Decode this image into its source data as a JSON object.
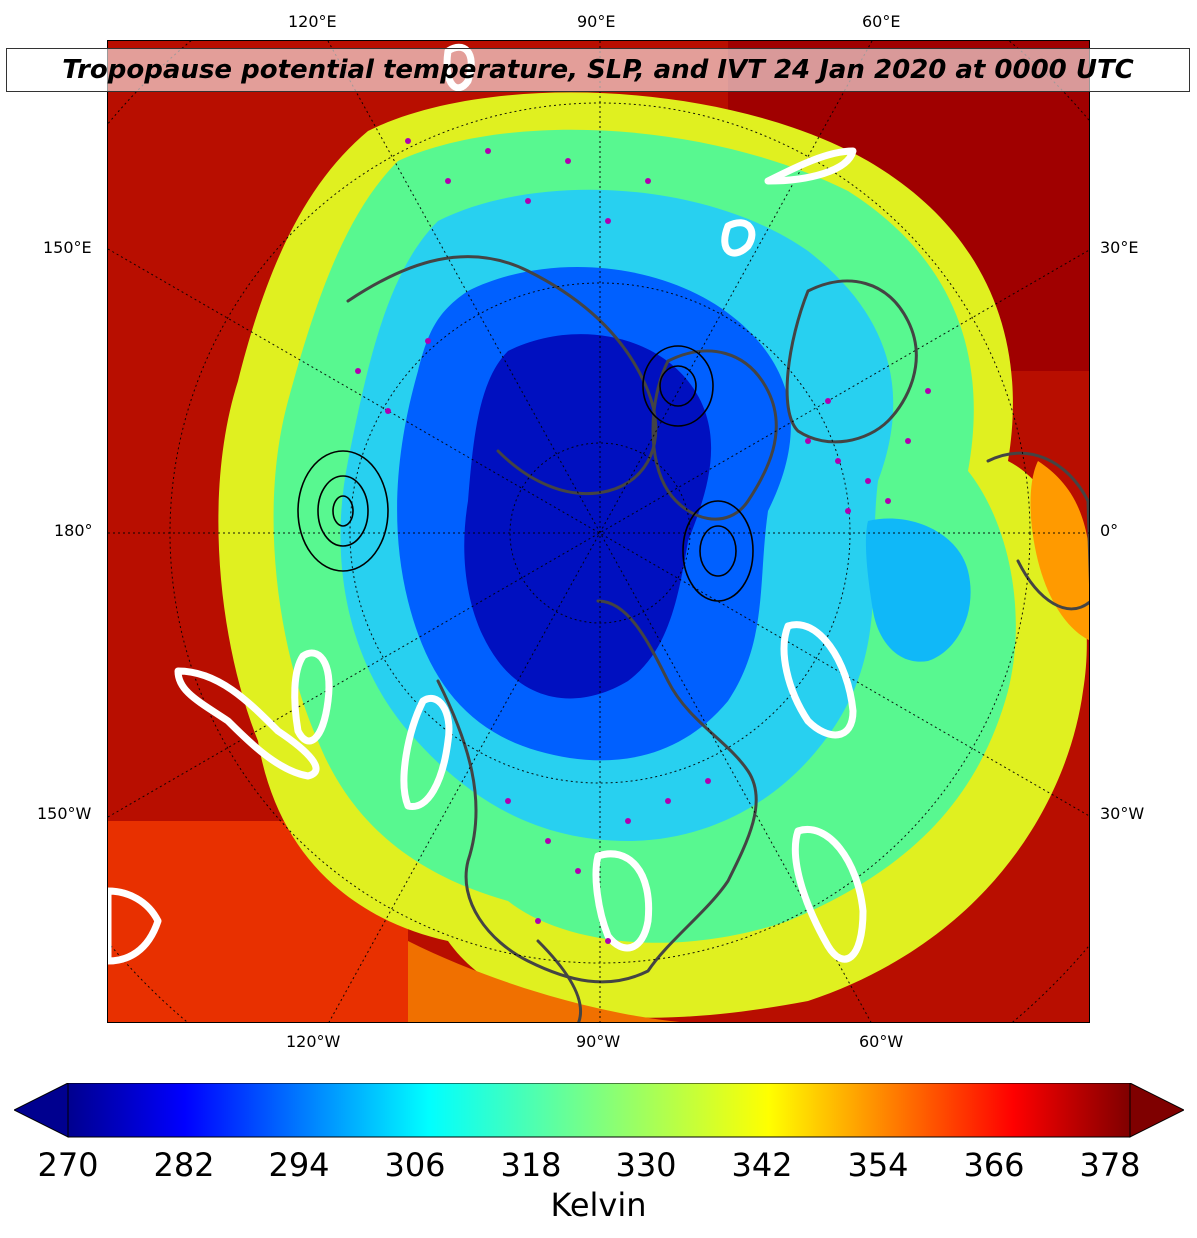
{
  "title": "Tropopause potential temperature, SLP, and IVT 24 Jan 2020 at 0000 UTC",
  "map": {
    "projection": "north-polar-stereographic",
    "field": "tropopause potential temperature",
    "overlays": [
      "SLP contours",
      "IVT contours",
      "station markers",
      "coastlines and borders",
      "lat/lon gridlines"
    ],
    "station_marker_color": "#b000b0",
    "coastline_color": "#444444",
    "ivt_contour_color": "#ffffff",
    "colors": {
      "warm_outer": "#9a0000",
      "red": "#e82000",
      "orange": "#ff7a00",
      "yellow": "#e8f020",
      "green": "#60ff90",
      "cyan": "#20d8f0",
      "blue": "#0050ff",
      "dark_blue": "#0010b8"
    }
  },
  "axes": {
    "top_labels": [
      "120°E",
      "90°E",
      "60°E"
    ],
    "bottom_labels": [
      "120°W",
      "90°W",
      "60°W"
    ],
    "left_labels": [
      "150°E",
      "180°",
      "150°W"
    ],
    "right_labels": [
      "30°E",
      "0°",
      "30°W"
    ]
  },
  "colorbar": {
    "label": "Kelvin",
    "min": 270,
    "max": 378,
    "ticks": [
      "270",
      "282",
      "294",
      "306",
      "318",
      "330",
      "342",
      "354",
      "366",
      "378"
    ],
    "colormap": "jet",
    "extend": "both"
  }
}
